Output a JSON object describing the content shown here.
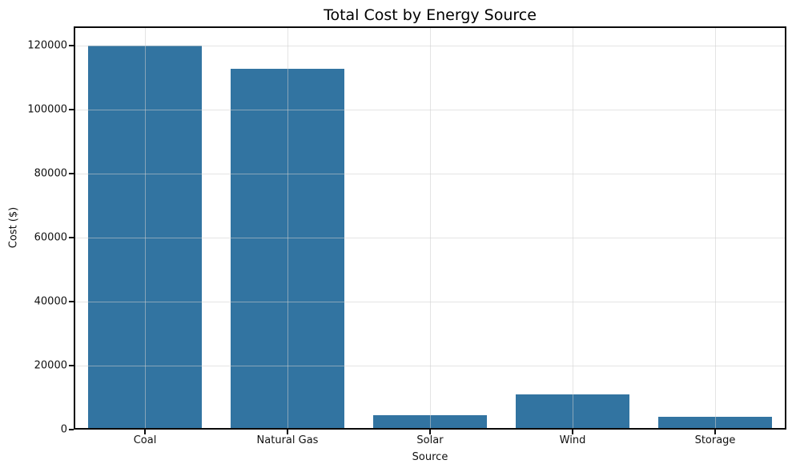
{
  "chart_data": {
    "type": "bar",
    "title": "Total Cost by Energy Source",
    "xlabel": "Source",
    "ylabel": "Cost ($)",
    "categories": [
      "Coal",
      "Natural Gas",
      "Solar",
      "Wind",
      "Storage"
    ],
    "values": [
      120000,
      112700,
      4400,
      11000,
      4000
    ],
    "yticks": [
      0,
      20000,
      40000,
      60000,
      80000,
      100000,
      120000
    ],
    "ylim": [
      0,
      126000
    ],
    "grid": true,
    "legend": "none",
    "bar_color": "#3274a1",
    "bar_width_frac": 0.8,
    "spine_color": "#0a0a0a",
    "grid_color": "#e6e6e6",
    "background_color": "#ffffff"
  }
}
